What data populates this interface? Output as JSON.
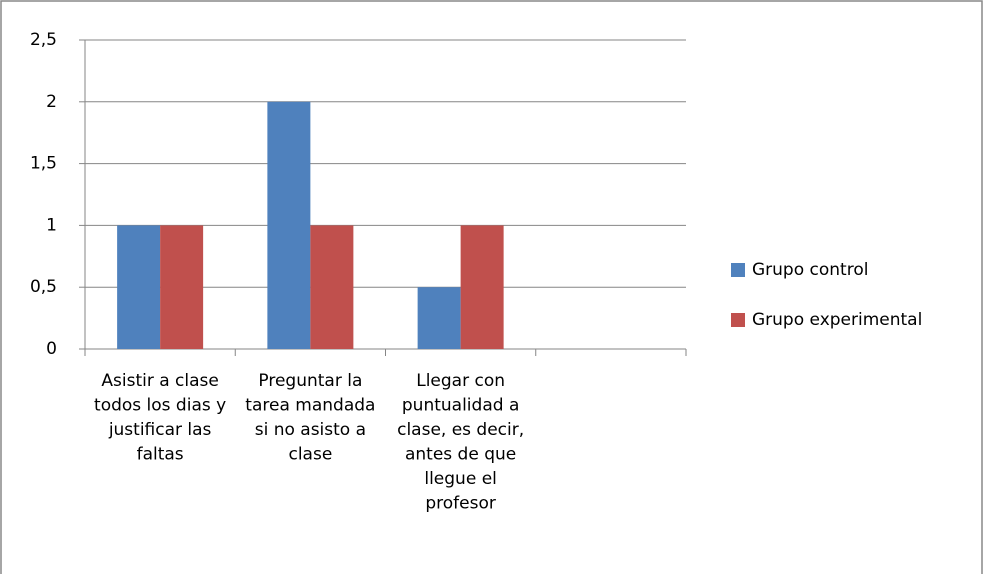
{
  "chart_data": {
    "type": "bar",
    "categories": [
      "Asistir a clase todos los dias y justificar las faltas",
      "Preguntar la tarea mandada si no asisto a clase",
      "Llegar con puntualidad a clase, es decir, antes de que llegue el profesor",
      null
    ],
    "series": [
      {
        "name": "Grupo control",
        "color": "#4f81bd",
        "values": [
          1,
          2,
          0.5,
          null
        ]
      },
      {
        "name": "Grupo experimental",
        "color": "#c0504d",
        "values": [
          1,
          1,
          1,
          null
        ]
      }
    ],
    "ylim": [
      0,
      2.5
    ],
    "yticks": [
      0,
      {
        "value": 0.5,
        "label": "0,5"
      },
      1,
      {
        "value": 1.5,
        "label": "1,5"
      },
      2,
      {
        "value": 2.5,
        "label": "2,5"
      }
    ],
    "grid": true,
    "legend": "right"
  }
}
